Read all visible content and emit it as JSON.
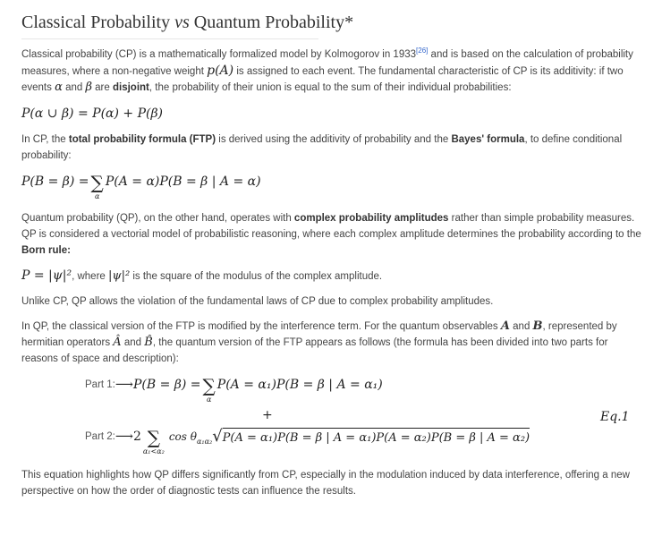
{
  "title": {
    "pre": "Classical Probability ",
    "vs": "vs",
    "post": " Quantum Probability*"
  },
  "p1": {
    "a": "Classical probability (CP) is a mathematically formalized model by Kolmogorov in 1933",
    "ref": "[26]",
    "b": " and is based on the calculation of probability",
    "c": "measures, where a non-negative weight ",
    "m1": "p(A)",
    "d": " is assigned to each event. The fundamental characteristic of CP is its additivity: if two events",
    "m2": "α",
    "e": " and ",
    "m3": "β",
    "f": " are ",
    "bold": "disjoint",
    "g": ", the probability of their union is equal to the sum of their individual probabilities:"
  },
  "eq1": "P(α ∪ β) = P(α) + P(β)",
  "p2": {
    "a": "In CP, the ",
    "b1": "total probability formula (FTP)",
    "b": " is derived using the additivity of probability and the ",
    "b2": "Bayes' formula",
    "c": ", to define conditional",
    "d": "probability:"
  },
  "eq2": {
    "lhs": "P(B = β) = ",
    "sum": "∑",
    "sub": "α",
    "rhs": "P(A = α)P(B = β | A = α)"
  },
  "p3": {
    "a": "Quantum probability (QP), on the other hand, operates with ",
    "b1": "complex probability amplitudes",
    "b": " rather than simple probability measures. QP is",
    "c": "considered a vectorial model of probabilistic reasoning, where each complex amplitude determines the probability according to the ",
    "b2": "Born",
    "d": "rule",
    ":": ":"
  },
  "eq3": {
    "m": "P = |ψ|²",
    "t1": ", where ",
    "m2": "|ψ|²",
    "t2": " is the square of the modulus of the complex amplitude."
  },
  "p4": "Unlike CP, QP allows the violation of the fundamental laws of CP due to complex probability amplitudes.",
  "p5": {
    "a": "In QP, the classical version of the FTP is modified by the interference term. For the quantum observables ",
    "m1": "A",
    "b": " and ",
    "m2": "B",
    "c": ", represented by hermitian",
    "d": "operators ",
    "m3": "Â",
    "e": " and ",
    "m4": "B̂",
    "f": ", the quantum version of the FTP appears as follows (the formula has been divided into two parts for reasons of space",
    "g": "and description):"
  },
  "eq4": {
    "part1_label": "Part 1:",
    "arrow": "⟶",
    "part1_lhs": "P(B = β) = ",
    "sum": "∑",
    "part1_sub": "α",
    "part1_rhs": "P(A = α₁)P(B = β | A = α₁)",
    "plus": "+",
    "eq_label": "Eq.1",
    "part2_label": "Part 2:",
    "two": "2",
    "part2_sub": "α₁<α₂",
    "cos": "cos θ",
    "cos_sub": "α₁α₂",
    "sqrt": "√",
    "part2_rad": "P(A = α₁)P(B = β | A = α₁)P(A = α₂)P(B = β | A = α₂)"
  },
  "p6": {
    "a": "This equation highlights how QP differs significantly from CP, especially in the modulation induced by data interference, offering a new",
    "b": "perspective on how the order of diagnostic tests can influence the results."
  }
}
